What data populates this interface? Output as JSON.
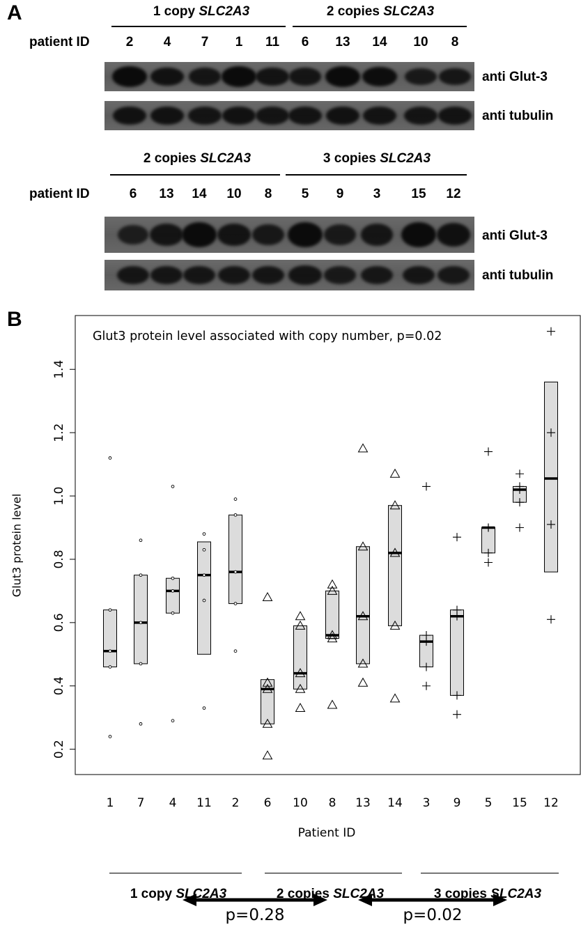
{
  "panel_a": {
    "letter": "A",
    "patient_label": "patient ID",
    "blots": [
      {
        "groups": [
          {
            "prefix": "1 copy",
            "gene": "SLC2A3"
          },
          {
            "prefix": "2 copies",
            "gene": "SLC2A3"
          }
        ],
        "lanes": [
          "2",
          "4",
          "7",
          "1",
          "11",
          "6",
          "13",
          "14",
          "10",
          "8"
        ],
        "glut3_intensity": [
          1.0,
          0.85,
          0.78,
          1.0,
          0.82,
          0.78,
          1.0,
          0.95,
          0.7,
          0.75
        ],
        "tubulin_intensity": [
          0.85,
          0.85,
          0.8,
          0.85,
          0.8,
          0.82,
          0.85,
          0.82,
          0.8,
          0.82
        ],
        "antibodies": [
          "anti Glut-3",
          "anti tubulin"
        ]
      },
      {
        "groups": [
          {
            "prefix": "2 copies",
            "gene": "SLC2A3"
          },
          {
            "prefix": "3 copies",
            "gene": "SLC2A3"
          }
        ],
        "lanes": [
          "6",
          "13",
          "14",
          "10",
          "8",
          "5",
          "9",
          "3",
          "15",
          "12"
        ],
        "glut3_intensity": [
          0.62,
          0.8,
          1.0,
          0.82,
          0.72,
          1.0,
          0.7,
          0.78,
          1.0,
          0.88
        ],
        "tubulin_intensity": [
          0.78,
          0.78,
          0.78,
          0.78,
          0.78,
          0.8,
          0.7,
          0.75,
          0.78,
          0.72
        ],
        "antibodies": [
          "anti Glut-3",
          "anti tubulin"
        ]
      }
    ]
  },
  "panel_b": {
    "letter": "B",
    "groups": [
      {
        "prefix": "1 copy",
        "gene": "SLC2A3"
      },
      {
        "prefix": "2 copies",
        "gene": "SLC2A3"
      },
      {
        "prefix": "3 copies",
        "gene": "SLC2A3"
      }
    ],
    "comparisons": [
      {
        "label": "p=0.28"
      },
      {
        "label": "p=0.02"
      }
    ]
  },
  "chart_data": {
    "type": "box",
    "title": "Glut3 protein level associated with copy number, p=0.02",
    "xlabel": "Patient ID",
    "ylabel": "Glut3 protein level",
    "ylim": [
      0.12,
      1.57
    ],
    "yticks": [
      0.2,
      0.4,
      0.6,
      0.8,
      1.0,
      1.2,
      1.4
    ],
    "categories": [
      "1",
      "7",
      "4",
      "11",
      "2",
      "6",
      "10",
      "8",
      "13",
      "14",
      "3",
      "9",
      "5",
      "15",
      "12"
    ],
    "marker_by_group": [
      "circle",
      "triangle",
      "plus"
    ],
    "series": [
      {
        "category": "1",
        "group": 0,
        "q1": 0.46,
        "median": 0.51,
        "q3": 0.64,
        "points": [
          1.12,
          0.64,
          0.51,
          0.46,
          0.24
        ]
      },
      {
        "category": "7",
        "group": 0,
        "q1": 0.47,
        "median": 0.6,
        "q3": 0.75,
        "points": [
          0.86,
          0.75,
          0.6,
          0.47,
          0.28
        ]
      },
      {
        "category": "4",
        "group": 0,
        "q1": 0.63,
        "median": 0.7,
        "q3": 0.74,
        "points": [
          1.03,
          0.74,
          0.7,
          0.63,
          0.29
        ]
      },
      {
        "category": "11",
        "group": 0,
        "q1": 0.5,
        "median": 0.75,
        "q3": 0.855,
        "points": [
          0.88,
          0.83,
          0.75,
          0.67,
          0.33
        ]
      },
      {
        "category": "2",
        "group": 0,
        "q1": 0.66,
        "median": 0.76,
        "q3": 0.94,
        "points": [
          0.99,
          0.94,
          0.76,
          0.66,
          0.51
        ]
      },
      {
        "category": "6",
        "group": 1,
        "q1": 0.28,
        "median": 0.39,
        "q3": 0.42,
        "points": [
          0.68,
          0.41,
          0.39,
          0.28,
          0.18
        ]
      },
      {
        "category": "10",
        "group": 1,
        "q1": 0.39,
        "median": 0.44,
        "q3": 0.59,
        "points": [
          0.62,
          0.59,
          0.44,
          0.39,
          0.33
        ]
      },
      {
        "category": "8",
        "group": 1,
        "q1": 0.55,
        "median": 0.56,
        "q3": 0.7,
        "points": [
          0.72,
          0.7,
          0.56,
          0.55,
          0.34
        ]
      },
      {
        "category": "13",
        "group": 1,
        "q1": 0.47,
        "median": 0.62,
        "q3": 0.84,
        "points": [
          1.15,
          0.84,
          0.62,
          0.47,
          0.41
        ]
      },
      {
        "category": "14",
        "group": 1,
        "q1": 0.59,
        "median": 0.82,
        "q3": 0.97,
        "points": [
          1.07,
          0.97,
          0.82,
          0.59,
          0.36
        ]
      },
      {
        "category": "3",
        "group": 2,
        "q1": 0.46,
        "median": 0.54,
        "q3": 0.56,
        "points": [
          1.03,
          0.56,
          0.54,
          0.46,
          0.4
        ]
      },
      {
        "category": "9",
        "group": 2,
        "q1": 0.37,
        "median": 0.62,
        "q3": 0.64,
        "points": [
          0.87,
          0.64,
          0.62,
          0.37,
          0.31
        ]
      },
      {
        "category": "5",
        "group": 2,
        "q1": 0.82,
        "median": 0.9,
        "q3": 0.9,
        "points": [
          1.14,
          0.9,
          0.9,
          0.82,
          0.79
        ]
      },
      {
        "category": "15",
        "group": 2,
        "q1": 0.98,
        "median": 1.02,
        "q3": 1.03,
        "points": [
          1.07,
          1.03,
          1.02,
          0.98,
          0.9
        ]
      },
      {
        "category": "12",
        "group": 2,
        "q1": 0.76,
        "median": 1.055,
        "q3": 1.36,
        "points": [
          1.52,
          1.2,
          0.91,
          0.61
        ]
      }
    ]
  }
}
